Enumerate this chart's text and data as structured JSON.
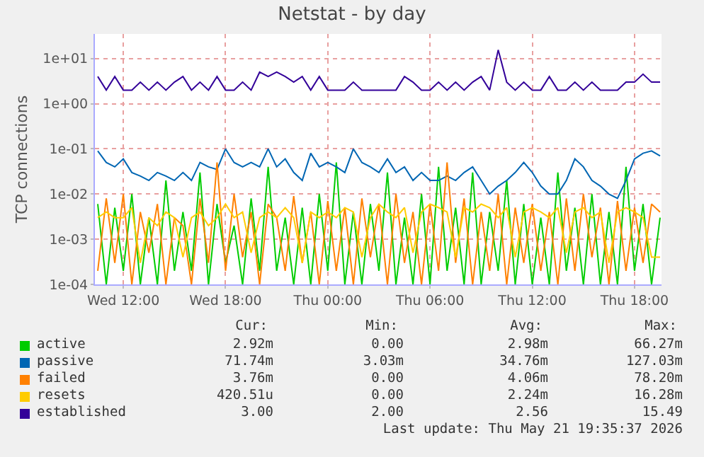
{
  "chart_data": {
    "type": "line",
    "title": "Netstat - by day",
    "ylabel": "TCP connections",
    "log": "y",
    "grid": true,
    "legend": "bottom",
    "marker": "none",
    "line_style": "solid",
    "x": [
      "2026-05-20T10:30",
      "2026-05-20T11:00",
      "2026-05-20T11:30",
      "2026-05-20T12:00",
      "2026-05-20T12:30",
      "2026-05-20T13:00",
      "2026-05-20T13:30",
      "2026-05-20T14:00",
      "2026-05-20T14:30",
      "2026-05-20T15:00",
      "2026-05-20T15:30",
      "2026-05-20T16:00",
      "2026-05-20T16:30",
      "2026-05-20T17:00",
      "2026-05-20T17:30",
      "2026-05-20T18:00",
      "2026-05-20T18:30",
      "2026-05-20T19:00",
      "2026-05-20T19:30",
      "2026-05-20T20:00",
      "2026-05-20T20:30",
      "2026-05-20T21:00",
      "2026-05-20T21:30",
      "2026-05-20T22:00",
      "2026-05-20T22:30",
      "2026-05-20T23:00",
      "2026-05-20T23:30",
      "2026-05-21T00:00",
      "2026-05-21T00:30",
      "2026-05-21T01:00",
      "2026-05-21T01:30",
      "2026-05-21T02:00",
      "2026-05-21T02:30",
      "2026-05-21T03:00",
      "2026-05-21T03:30",
      "2026-05-21T04:00",
      "2026-05-21T04:30",
      "2026-05-21T05:00",
      "2026-05-21T05:30",
      "2026-05-21T06:00",
      "2026-05-21T06:30",
      "2026-05-21T07:00",
      "2026-05-21T07:30",
      "2026-05-21T08:00",
      "2026-05-21T08:30",
      "2026-05-21T09:00",
      "2026-05-21T09:30",
      "2026-05-21T10:00",
      "2026-05-21T10:30",
      "2026-05-21T11:00",
      "2026-05-21T11:30",
      "2026-05-21T12:00",
      "2026-05-21T12:30",
      "2026-05-21T13:00",
      "2026-05-21T13:30",
      "2026-05-21T14:00",
      "2026-05-21T14:30",
      "2026-05-21T15:00",
      "2026-05-21T15:30",
      "2026-05-21T16:00",
      "2026-05-21T16:30",
      "2026-05-21T17:00",
      "2026-05-21T17:30",
      "2026-05-21T18:00",
      "2026-05-21T18:30",
      "2026-05-21T19:00",
      "2026-05-21T19:30"
    ],
    "xlim": [
      "2026-05-20T10:20",
      "2026-05-21T19:35"
    ],
    "xticks": [
      {
        "value": "2026-05-20T12:00",
        "label": "Wed 12:00"
      },
      {
        "value": "2026-05-20T18:00",
        "label": "Wed 18:00"
      },
      {
        "value": "2026-05-21T00:00",
        "label": "Thu 00:00"
      },
      {
        "value": "2026-05-21T06:00",
        "label": "Thu 06:00"
      },
      {
        "value": "2026-05-21T12:00",
        "label": "Thu 12:00"
      },
      {
        "value": "2026-05-21T18:00",
        "label": "Thu 18:00"
      }
    ],
    "ylim": [
      0.0001,
      35
    ],
    "yticks": [
      {
        "value": 0.0001,
        "label": "1e-04"
      },
      {
        "value": 0.001,
        "label": "1e-03"
      },
      {
        "value": 0.01,
        "label": "1e-02"
      },
      {
        "value": 0.1,
        "label": "1e-01"
      },
      {
        "value": 1,
        "label": "1e+00"
      },
      {
        "value": 10,
        "label": "1e+01"
      }
    ],
    "series": [
      {
        "name": "active",
        "color": "#00cc00",
        "values": [
          0.006,
          0.0001,
          0.005,
          0.0002,
          0.01,
          0.0001,
          0.003,
          0.0001,
          0.02,
          0.0002,
          0.004,
          0.0002,
          0.03,
          0.0001,
          0.006,
          0.0003,
          0.002,
          0.0001,
          0.008,
          0.0002,
          0.04,
          0.0002,
          0.003,
          0.0001,
          0.005,
          0.0001,
          0.01,
          0.0002,
          0.05,
          0.0001,
          0.004,
          0.0001,
          0.006,
          0.0002,
          0.03,
          0.0001,
          0.003,
          0.0001,
          0.01,
          0.0001,
          0.04,
          0.0002,
          0.005,
          0.0001,
          0.03,
          0.0001,
          0.004,
          0.0002,
          0.02,
          0.0001,
          0.006,
          0.0001,
          0.003,
          0.0001,
          0.03,
          0.0002,
          0.005,
          0.0001,
          0.01,
          0.0001,
          0.004,
          0.0001,
          0.04,
          0.0002,
          0.006,
          0.0001,
          0.003
        ]
      },
      {
        "name": "passive",
        "color": "#0066b3",
        "values": [
          0.09,
          0.05,
          0.04,
          0.06,
          0.03,
          0.025,
          0.02,
          0.03,
          0.025,
          0.02,
          0.03,
          0.02,
          0.05,
          0.04,
          0.035,
          0.1,
          0.05,
          0.04,
          0.05,
          0.04,
          0.1,
          0.04,
          0.06,
          0.03,
          0.02,
          0.08,
          0.04,
          0.05,
          0.04,
          0.03,
          0.1,
          0.05,
          0.04,
          0.03,
          0.06,
          0.03,
          0.04,
          0.02,
          0.03,
          0.02,
          0.02,
          0.025,
          0.02,
          0.03,
          0.04,
          0.02,
          0.01,
          0.015,
          0.02,
          0.03,
          0.05,
          0.03,
          0.015,
          0.01,
          0.01,
          0.02,
          0.06,
          0.04,
          0.02,
          0.015,
          0.01,
          0.008,
          0.02,
          0.06,
          0.08,
          0.09,
          0.07
        ]
      },
      {
        "name": "failed",
        "color": "#ff8000",
        "values": [
          0.0002,
          0.008,
          0.0003,
          0.01,
          0.0001,
          0.004,
          0.0005,
          0.006,
          0.0001,
          0.003,
          0.002,
          0.0001,
          0.008,
          0.0003,
          0.05,
          0.0002,
          0.01,
          0.0004,
          0.004,
          0.0001,
          0.006,
          0.003,
          0.0002,
          0.009,
          0.0003,
          0.004,
          0.0001,
          0.007,
          0.0002,
          0.005,
          0.0001,
          0.008,
          0.0004,
          0.006,
          0.0001,
          0.01,
          0.0003,
          0.004,
          0.0001,
          0.006,
          0.0002,
          0.05,
          0.0003,
          0.008,
          0.0001,
          0.004,
          0.0002,
          0.01,
          0.0001,
          0.005,
          0.0003,
          0.006,
          0.0002,
          0.004,
          0.0001,
          0.008,
          0.0002,
          0.01,
          0.0004,
          0.005,
          0.0001,
          0.007,
          0.0002,
          0.005,
          0.0003,
          0.006,
          0.004
        ]
      },
      {
        "name": "resets",
        "color": "#ffcc00",
        "values": [
          0.003,
          0.004,
          0.003,
          0.003,
          0.005,
          0.0003,
          0.003,
          0.002,
          0.004,
          0.003,
          0.0004,
          0.003,
          0.004,
          0.002,
          0.003,
          0.006,
          0.003,
          0.004,
          0.0005,
          0.003,
          0.004,
          0.003,
          0.005,
          0.003,
          0.0003,
          0.004,
          0.003,
          0.004,
          0.003,
          0.005,
          0.004,
          0.0004,
          0.003,
          0.006,
          0.004,
          0.003,
          0.005,
          0.0005,
          0.004,
          0.006,
          0.005,
          0.004,
          0.0004,
          0.005,
          0.004,
          0.006,
          0.005,
          0.003,
          0.005,
          0.0004,
          0.004,
          0.005,
          0.004,
          0.003,
          0.005,
          0.0005,
          0.004,
          0.005,
          0.003,
          0.004,
          0.0003,
          0.004,
          0.005,
          0.004,
          0.003,
          0.0004,
          0.0004
        ]
      },
      {
        "name": "established",
        "color": "#330099",
        "values": [
          4,
          2,
          4,
          2,
          2,
          3,
          2,
          3,
          2,
          3,
          4,
          2,
          3,
          2,
          4,
          2,
          2,
          3,
          2,
          5,
          4,
          5,
          4,
          3,
          4,
          2,
          4,
          2,
          2,
          2,
          3,
          2,
          2,
          2,
          2,
          2,
          4,
          3,
          2,
          2,
          3,
          2,
          3,
          2,
          3,
          4,
          2,
          15.49,
          3,
          2,
          3,
          2,
          2,
          4,
          2,
          2,
          3,
          2,
          3,
          2,
          2,
          2,
          3,
          3,
          4.5,
          3,
          3
        ]
      }
    ],
    "annotations": [
      "Cur:",
      "Min:",
      "Avg:",
      "Max:",
      "2.92m",
      "0.00",
      "2.98m",
      "66.27m",
      "71.74m",
      "3.03m",
      "34.76m",
      "127.03m",
      "3.76m",
      "0.00",
      "4.06m",
      "78.20m",
      "420.51u",
      "0.00",
      "2.24m",
      "16.28m",
      "3.00",
      "2.00",
      "2.56",
      "15.49",
      "Last update: Thu May 21 19:35:37 2026"
    ]
  }
}
